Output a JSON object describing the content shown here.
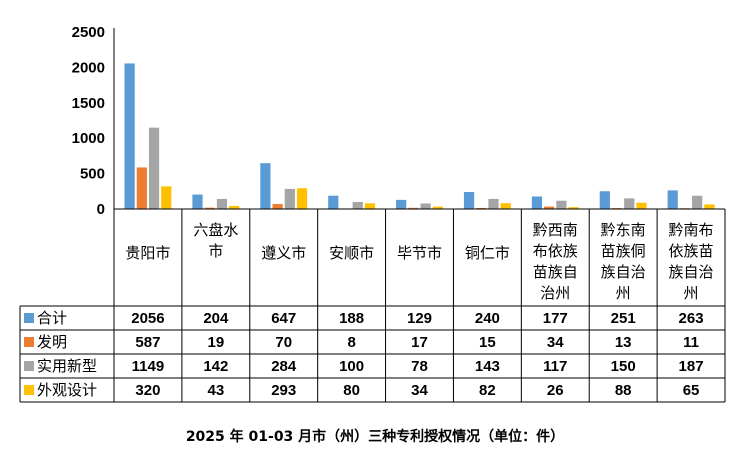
{
  "caption": "2025 年 01-03 月市（州）三种专利授权情况（单位：件）",
  "chart_data": {
    "type": "bar",
    "title": "2025 年 01-03 月市（州）三种专利授权情况（单位：件）",
    "ylim": [
      0,
      2500
    ],
    "yticks": [
      "0",
      "500",
      "1000",
      "1500",
      "2000",
      "2500"
    ],
    "grid": false,
    "legend": "data-table-left",
    "categories": [
      [
        "贵阳市"
      ],
      [
        "六盘水",
        "市"
      ],
      [
        "遵义市"
      ],
      [
        "安顺市"
      ],
      [
        "毕节市"
      ],
      [
        "铜仁市"
      ],
      [
        "黔西南",
        "布依族",
        "苗族自",
        "治州"
      ],
      [
        "黔东南",
        "苗族侗",
        "族自治",
        "州"
      ],
      [
        "黔南布",
        "依族苗",
        "族自治",
        "州"
      ]
    ],
    "series": [
      {
        "name": "合计",
        "color": "#5b9bd5",
        "values": [
          2056,
          204,
          647,
          188,
          129,
          240,
          177,
          251,
          263
        ]
      },
      {
        "name": "发明",
        "color": "#ed7d31",
        "values": [
          587,
          19,
          70,
          8,
          17,
          15,
          34,
          13,
          11
        ]
      },
      {
        "name": "实用新型",
        "color": "#a5a5a5",
        "values": [
          1149,
          142,
          284,
          100,
          78,
          143,
          117,
          150,
          187
        ]
      },
      {
        "name": "外观设计",
        "color": "#ffc000",
        "values": [
          320,
          43,
          293,
          80,
          34,
          82,
          26,
          88,
          65
        ]
      }
    ]
  }
}
